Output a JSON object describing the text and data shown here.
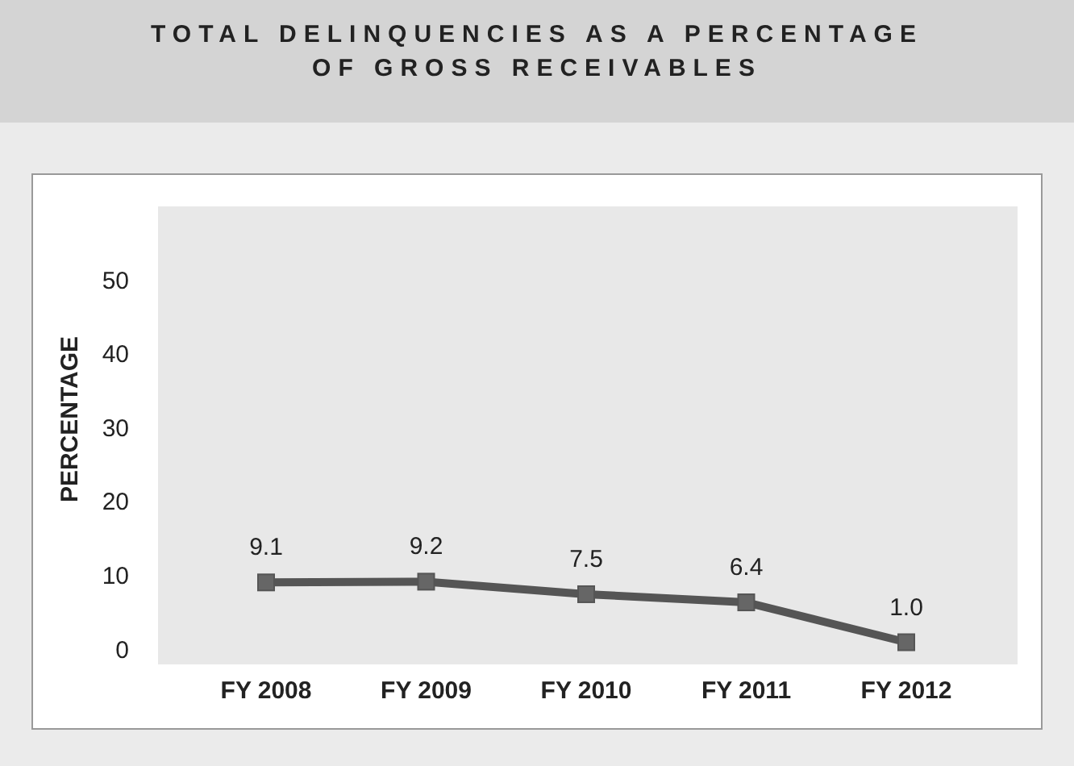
{
  "chart_data": {
    "type": "line",
    "title": "TOTAL DELINQUENCIES AS A PERCENTAGE OF GROSS RECEIVABLES",
    "ylabel": "PERCENTAGE",
    "categories": [
      "FY 2008",
      "FY 2009",
      "FY 2010",
      "FY 2011",
      "FY 2012"
    ],
    "series": [
      {
        "color": "#555555",
        "values": [
          9.1,
          9.2,
          7.5,
          6.4,
          1.0
        ],
        "value_labels": [
          "9.1",
          "9.2",
          "7.5",
          "6.4",
          "1.0"
        ]
      }
    ],
    "ylim": [
      -2,
      60
    ],
    "yticks": [
      0,
      10,
      20,
      30,
      40,
      50
    ],
    "marker": "square",
    "line_style": "solid"
  }
}
